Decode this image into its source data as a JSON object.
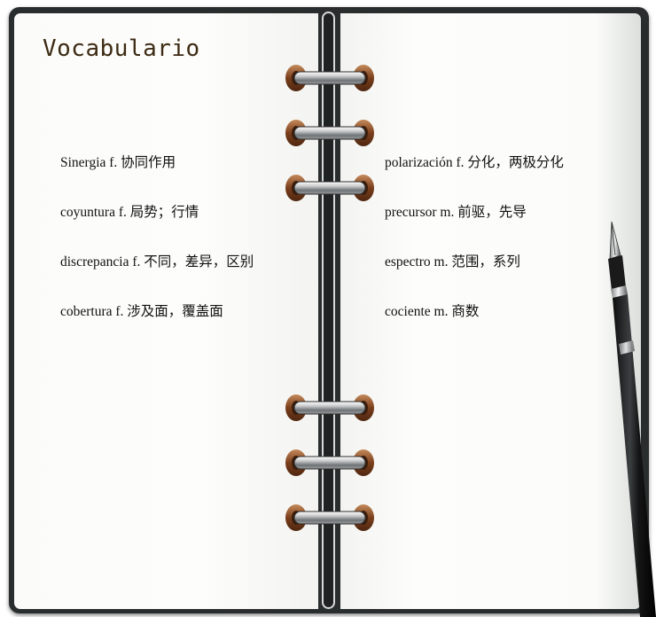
{
  "title": "Vocabulario",
  "left_column": [
    "Sinergia f. 协同作用",
    "coyuntura f. 局势；行情",
    "discrepancia f.  不同，差异，区别",
    "cobertura f. 涉及面，覆盖面"
  ],
  "right_column": [
    "polarización f.  分化，两极分化",
    "precursor m. 前驱，先导",
    "espectro m. 范围，系列",
    "cociente m. 商数"
  ],
  "colors": {
    "cover": "#2a2d2e",
    "page": "#fbfcfa",
    "title": "#3d2b14",
    "ring_copper": "#8a4f2a"
  },
  "icons": [
    "binder-ring-icon",
    "fountain-pen-icon"
  ]
}
